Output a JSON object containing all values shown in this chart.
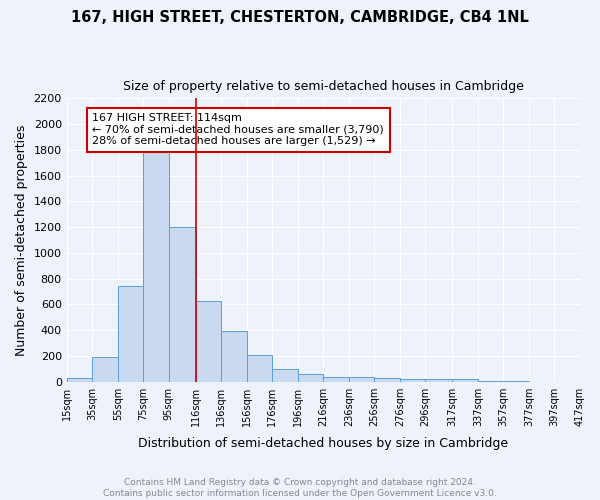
{
  "title": "167, HIGH STREET, CHESTERTON, CAMBRIDGE, CB4 1NL",
  "subtitle": "Size of property relative to semi-detached houses in Cambridge",
  "xlabel": "Distribution of semi-detached houses by size in Cambridge",
  "ylabel": "Number of semi-detached properties",
  "bar_left_edges": [
    15,
    35,
    55,
    75,
    95,
    116,
    136,
    156,
    176,
    196,
    216,
    236,
    256,
    276,
    296,
    317,
    337,
    357,
    377,
    397
  ],
  "bar_widths": [
    20,
    20,
    20,
    20,
    21,
    20,
    20,
    20,
    20,
    20,
    20,
    20,
    20,
    20,
    21,
    20,
    20,
    20,
    20,
    20
  ],
  "bar_heights": [
    25,
    195,
    745,
    1810,
    1200,
    630,
    390,
    205,
    100,
    60,
    40,
    35,
    25,
    20,
    20,
    20,
    5,
    5,
    0,
    0
  ],
  "tick_labels": [
    "15sqm",
    "35sqm",
    "55sqm",
    "75sqm",
    "95sqm",
    "116sqm",
    "136sqm",
    "156sqm",
    "176sqm",
    "196sqm",
    "216sqm",
    "236sqm",
    "256sqm",
    "276sqm",
    "296sqm",
    "317sqm",
    "337sqm",
    "357sqm",
    "377sqm",
    "397sqm",
    "417sqm"
  ],
  "tick_positions": [
    15,
    35,
    55,
    75,
    95,
    116,
    136,
    156,
    176,
    196,
    216,
    236,
    256,
    276,
    296,
    317,
    337,
    357,
    377,
    397,
    417
  ],
  "bar_color": "#c8d9f0",
  "bar_edge_color": "#5a9fd4",
  "vline_x": 116,
  "vline_color": "#cc0000",
  "annotation_text": "167 HIGH STREET: 114sqm\n← 70% of semi-detached houses are smaller (3,790)\n28% of semi-detached houses are larger (1,529) →",
  "annotation_box_color": "#ffffff",
  "annotation_box_edge": "#cc0000",
  "ylim": [
    0,
    2200
  ],
  "yticks": [
    0,
    200,
    400,
    600,
    800,
    1000,
    1200,
    1400,
    1600,
    1800,
    2000,
    2200
  ],
  "footer_text": "Contains HM Land Registry data © Crown copyright and database right 2024.\nContains public sector information licensed under the Open Government Licence v3.0.",
  "bg_color": "#eef2fb",
  "grid_color": "#ffffff",
  "title_fontsize": 10.5,
  "subtitle_fontsize": 9,
  "axis_label_fontsize": 9
}
